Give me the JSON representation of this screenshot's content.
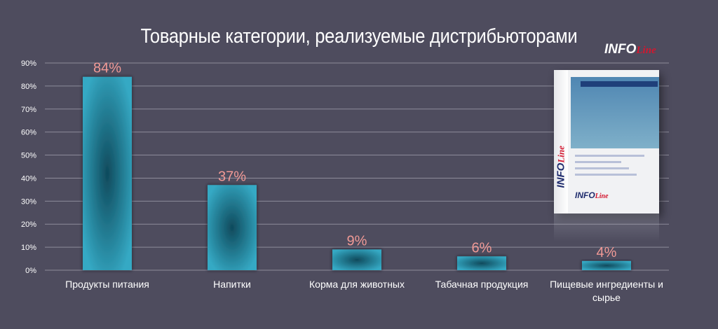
{
  "chart_data": {
    "type": "bar",
    "title": "Товарные категории, реализуемые дистрибьюторами",
    "categories": [
      "Продукты питания",
      "Напитки",
      "Корма для животных",
      "Табачная продукция",
      "Пищевые ингредиенты и сырье"
    ],
    "values": [
      84,
      37,
      9,
      6,
      4
    ],
    "data_labels": [
      "84%",
      "37%",
      "9%",
      "6%",
      "4%"
    ],
    "yticks": [
      "0%",
      "10%",
      "20%",
      "30%",
      "40%",
      "50%",
      "60%",
      "70%",
      "80%",
      "90%"
    ],
    "ylim": [
      0,
      90
    ],
    "grid": true,
    "colors": {
      "bar_edge": "#35a9c4",
      "bar_center": "#0f4a5c",
      "data_label": "#f19a96",
      "text": "#ffffff",
      "grid": "#8d8b9a",
      "background": "#4e4c5e"
    }
  },
  "logo": {
    "info": "INFO",
    "line": "Line"
  }
}
